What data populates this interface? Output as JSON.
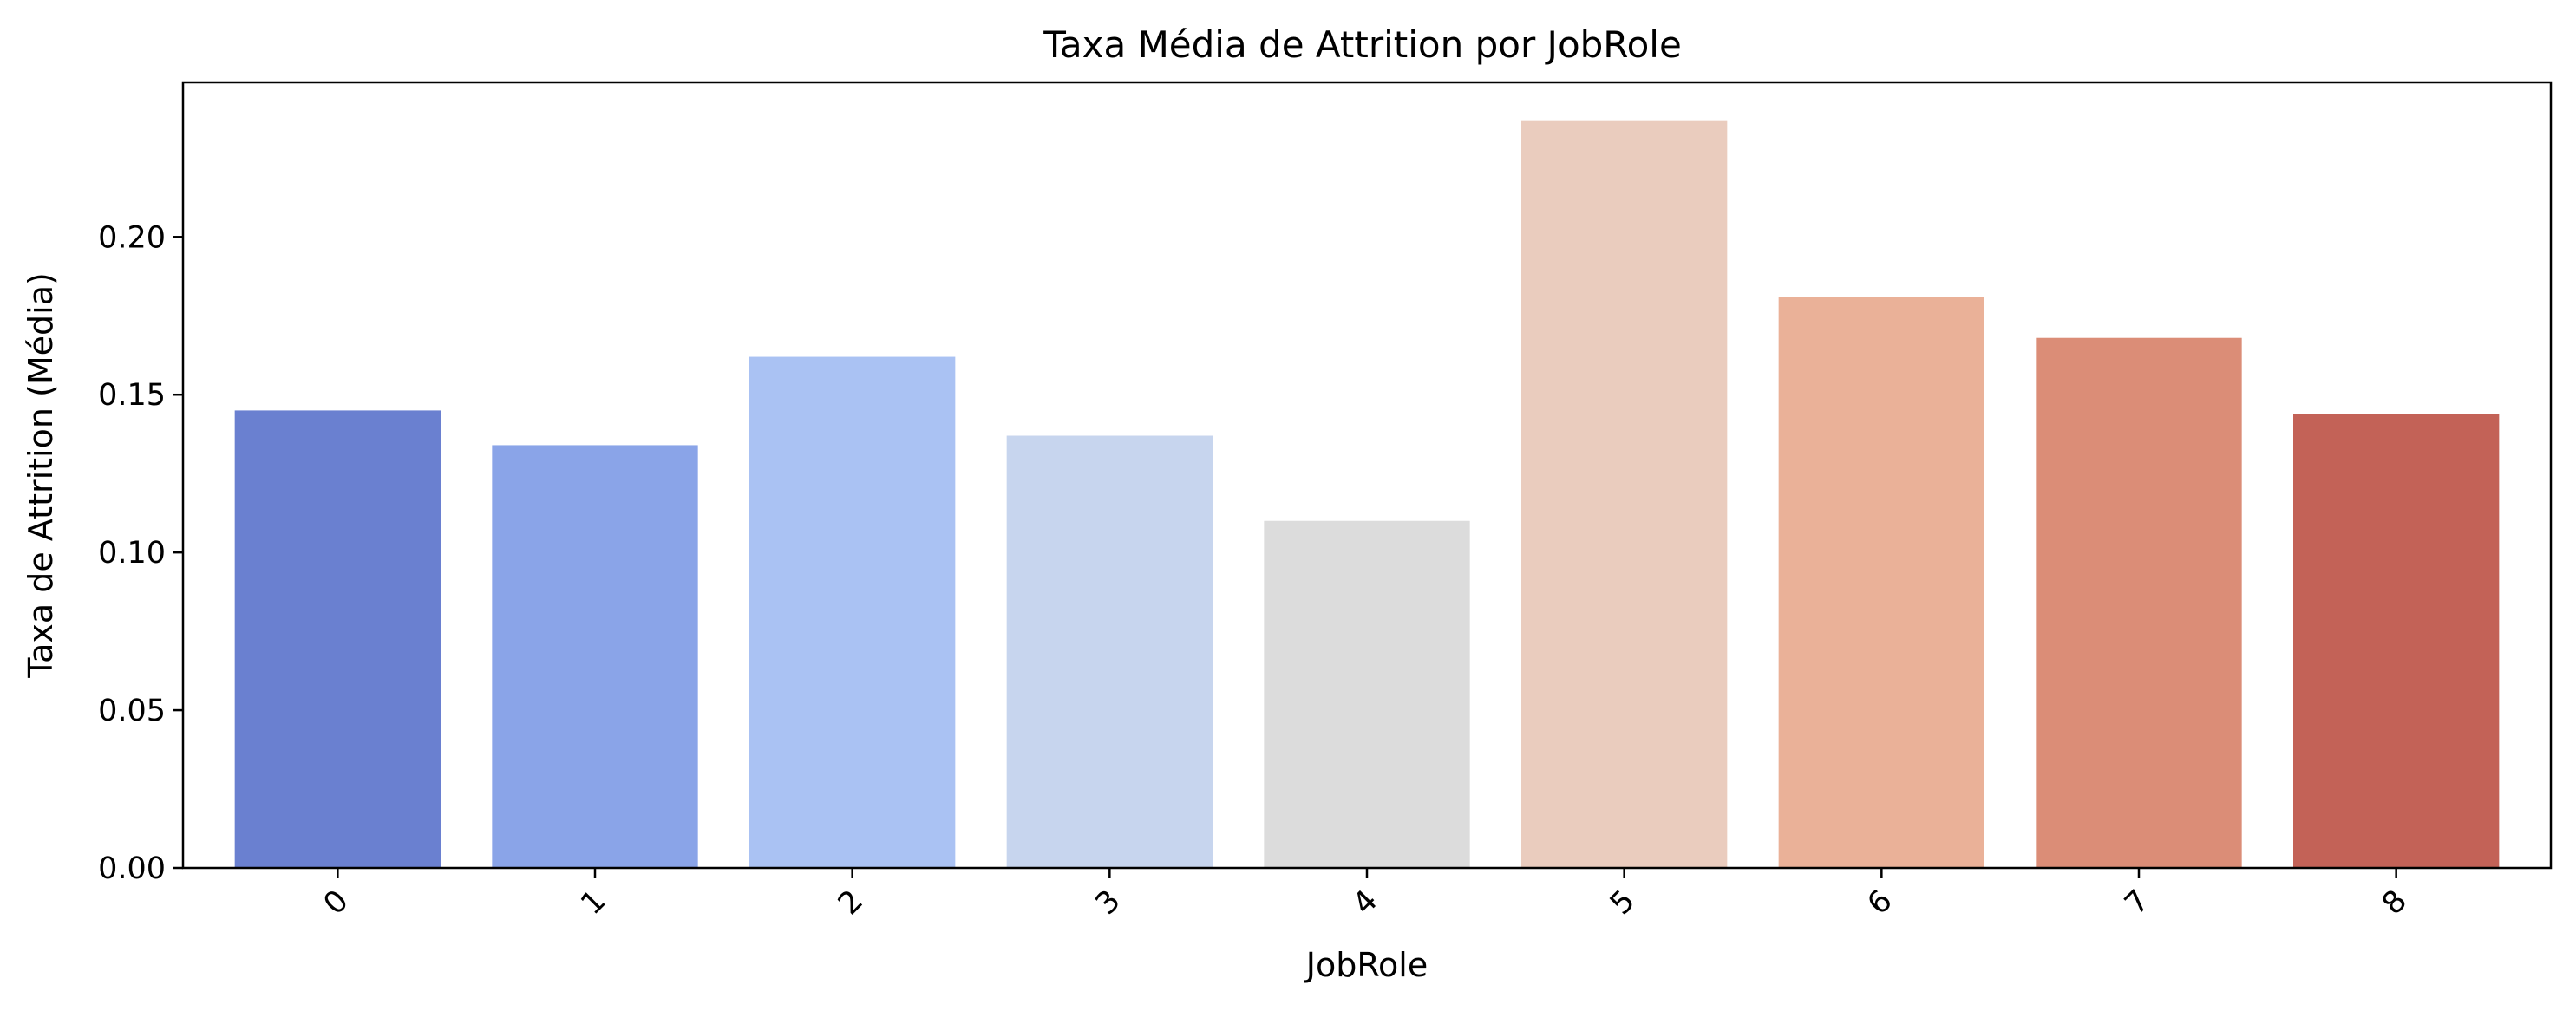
{
  "chart_data": {
    "type": "bar",
    "title": "Taxa Média de Attrition por JobRole",
    "xlabel": "JobRole",
    "ylabel": "Taxa de Attrition (Média)",
    "categories": [
      "0",
      "1",
      "2",
      "3",
      "4",
      "5",
      "6",
      "7",
      "8"
    ],
    "values": [
      0.145,
      0.134,
      0.162,
      0.137,
      0.11,
      0.237,
      0.181,
      0.168,
      0.144
    ],
    "colors": [
      "#6a80d0",
      "#8aa4e8",
      "#aac2f3",
      "#c7d5ee",
      "#dcdcdc",
      "#eaccbe",
      "#eab198",
      "#db8d77",
      "#c36257"
    ],
    "yticks": [
      "0.00",
      "0.05",
      "0.10",
      "0.15",
      "0.20"
    ],
    "ylim": [
      0,
      0.249
    ],
    "grid": false,
    "legend": false
  }
}
